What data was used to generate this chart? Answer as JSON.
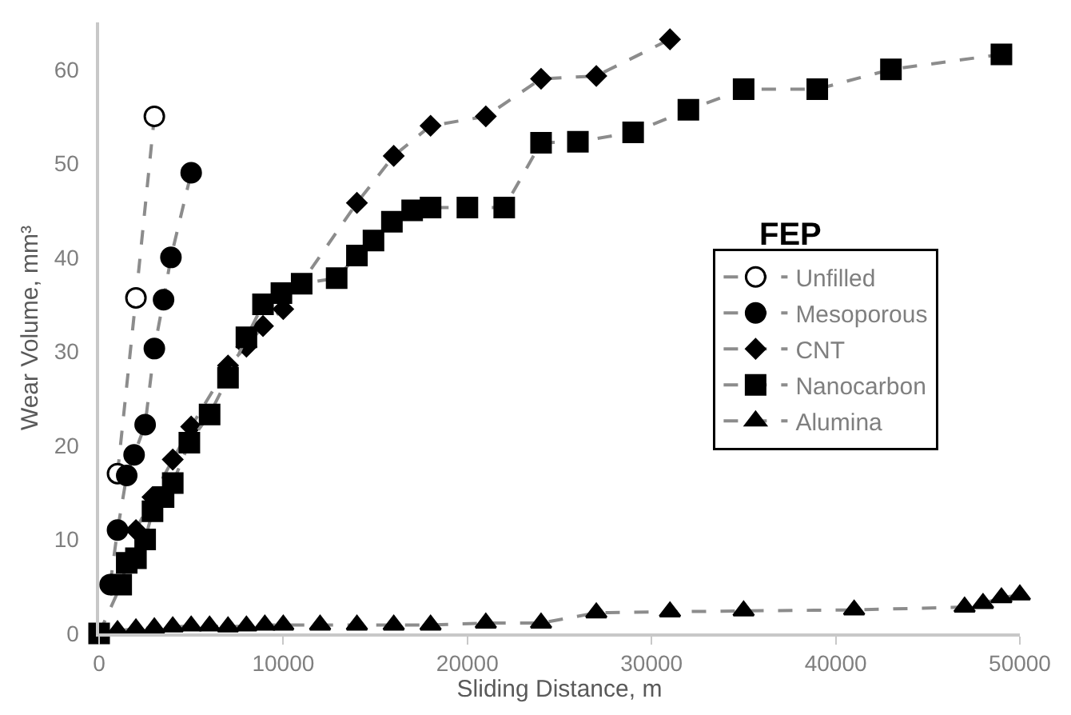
{
  "chart_data": {
    "type": "line",
    "xlabel": "Sliding Distance, m",
    "ylabel": "Wear Volume, mm³",
    "annotations": [
      "FEP"
    ],
    "xlim": [
      0,
      50000
    ],
    "xticks": [
      0,
      10000,
      20000,
      30000,
      40000,
      50000
    ],
    "ylim": [
      0,
      65
    ],
    "yticks": [
      0,
      10,
      20,
      30,
      40,
      50,
      60
    ],
    "legend": "right",
    "line_style": "dashed",
    "series": [
      {
        "name": "Unfilled",
        "color": "#ffffff",
        "marker": "circle",
        "x": [
          1000,
          2000,
          3000
        ],
        "values": [
          17,
          35.7,
          55
        ]
      },
      {
        "name": "Mesoporous",
        "color": "#000000",
        "marker": "circle",
        "x": [
          600,
          1000,
          1500,
          1900,
          2500,
          3000,
          3500,
          3900,
          5000
        ],
        "values": [
          5.2,
          11,
          16.8,
          19,
          22.2,
          30.3,
          35.5,
          40,
          49
        ]
      },
      {
        "name": "CNT",
        "color": "#000000",
        "marker": "diamond",
        "x": [
          2000,
          2900,
          4000,
          5000,
          7000,
          8000,
          8900,
          10000,
          14000,
          16000,
          18000,
          21000,
          24000,
          27000,
          31000
        ],
        "values": [
          11,
          14.5,
          18.5,
          22,
          28.5,
          30.5,
          32.7,
          34.5,
          45.8,
          50.8,
          54,
          55,
          59,
          59.3,
          63.2
        ]
      },
      {
        "name": "Nanocarbon",
        "color": "#000000",
        "marker": "square",
        "x": [
          0,
          1200,
          1500,
          2000,
          2500,
          2900,
          3500,
          4000,
          4900,
          6000,
          7000,
          8000,
          8900,
          9900,
          11000,
          12900,
          14000,
          14900,
          15900,
          17000,
          18000,
          20000,
          22000,
          24000,
          26000,
          29000,
          32000,
          35000,
          39000,
          43000,
          49000
        ],
        "values": [
          0,
          5.2,
          7.5,
          8,
          10,
          13,
          14.5,
          16,
          20.3,
          23.3,
          27.2,
          31.5,
          35,
          36.2,
          37.2,
          37.8,
          40.2,
          41.8,
          43.8,
          45,
          45.3,
          45.3,
          45.3,
          52.2,
          52.3,
          53.3,
          55.7,
          57.9,
          57.9,
          60,
          61.6
        ]
      },
      {
        "name": "Alumina",
        "color": "#000000",
        "marker": "triangle",
        "x": [
          1000,
          2000,
          3000,
          4000,
          5000,
          6000,
          7000,
          8000,
          9000,
          10000,
          12000,
          14000,
          16000,
          18000,
          21000,
          24000,
          27000,
          31000,
          35000,
          41000,
          47000,
          48000,
          49000,
          50000
        ],
        "values": [
          0.3,
          0.5,
          0.6,
          0.7,
          0.8,
          0.8,
          0.7,
          0.8,
          0.9,
          0.9,
          0.9,
          0.9,
          0.9,
          0.9,
          1.1,
          1.1,
          2.2,
          2.3,
          2.4,
          2.5,
          2.8,
          3.2,
          3.8,
          4.1
        ]
      }
    ]
  }
}
